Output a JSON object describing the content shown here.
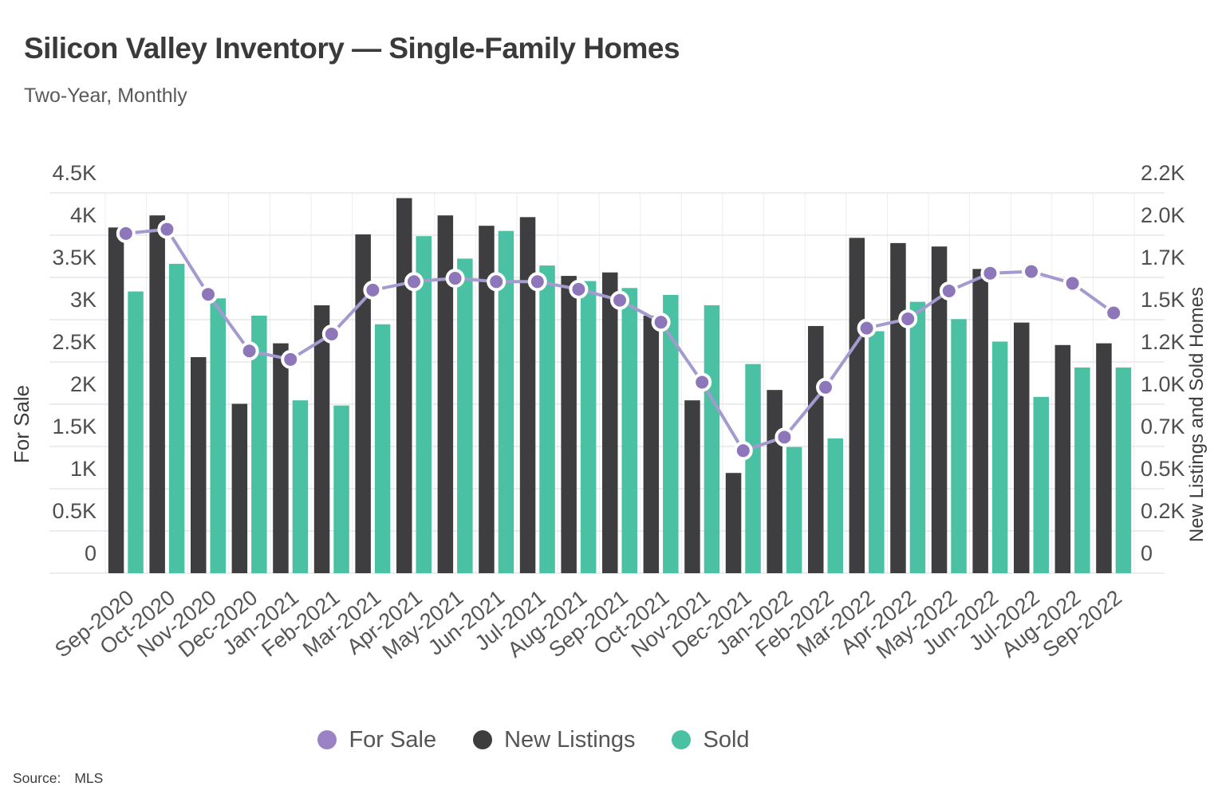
{
  "header": {
    "title": "Silicon Valley Inventory — Single-Family Homes",
    "subtitle": "Two-Year, Monthly"
  },
  "source": {
    "label": "Source:",
    "value": "MLS"
  },
  "legend": [
    {
      "label": "For Sale",
      "color": "#9b82c4"
    },
    {
      "label": "New Listings",
      "color": "#3e3e41"
    },
    {
      "label": "Sold",
      "color": "#49c1a2"
    }
  ],
  "chart_data": {
    "type": "combo-bar-line",
    "title": "Silicon Valley Inventory — Single-Family Homes",
    "subtitle": "Two-Year, Monthly",
    "grid": true,
    "legend_position": "bottom",
    "categories": [
      "Sep-2020",
      "Oct-2020",
      "Nov-2020",
      "Dec-2020",
      "Jan-2021",
      "Feb-2021",
      "Mar-2021",
      "Apr-2021",
      "May-2021",
      "Jun-2021",
      "Jul-2021",
      "Aug-2021",
      "Sep-2021",
      "Oct-2021",
      "Nov-2021",
      "Dec-2021",
      "Jan-2022",
      "Feb-2022",
      "Mar-2022",
      "Apr-2022",
      "May-2022",
      "Jun-2022",
      "Jul-2022",
      "Aug-2022",
      "Sep-2022"
    ],
    "series": [
      {
        "name": "For Sale",
        "type": "line",
        "axis": "left",
        "color": "#8d76b9",
        "line_color": "#a49ad0",
        "values": [
          4020,
          4070,
          3300,
          2630,
          2530,
          2830,
          3350,
          3450,
          3490,
          3450,
          3450,
          3360,
          3230,
          2970,
          2260,
          1450,
          1610,
          2200,
          2900,
          3010,
          3340,
          3550,
          3570,
          3430,
          3080
        ]
      },
      {
        "name": "New Listings",
        "type": "bar",
        "axis": "right",
        "color": "#3e3e41",
        "values": [
          2000,
          2070,
          1250,
          980,
          1330,
          1550,
          1960,
          2170,
          2070,
          2010,
          2060,
          1720,
          1740,
          1490,
          1000,
          580,
          1060,
          1430,
          1940,
          1910,
          1890,
          1760,
          1450,
          1320,
          1330
        ]
      },
      {
        "name": "Sold",
        "type": "bar",
        "axis": "right",
        "color": "#49c1a2",
        "values": [
          1630,
          1790,
          1590,
          1490,
          1000,
          970,
          1440,
          1950,
          1820,
          1980,
          1780,
          1690,
          1650,
          1610,
          1550,
          1210,
          730,
          780,
          1400,
          1570,
          1470,
          1340,
          1020,
          1190,
          1190
        ]
      }
    ],
    "axes": {
      "left": {
        "title": "For Sale",
        "min": 0,
        "max": 4500,
        "tick_labels": [
          "0",
          "0.5K",
          "1K",
          "1.5K",
          "2K",
          "2.5K",
          "3K",
          "3.5K",
          "4K",
          "4.5K"
        ]
      },
      "right": {
        "title": "New Listings and Sold Homes",
        "min": 0,
        "max": 2200,
        "tick_labels": [
          "0",
          "0.2K",
          "0.5K",
          "0.7K",
          "1.0K",
          "1.2K",
          "1.5K",
          "1.7K",
          "2.0K",
          "2.2K"
        ]
      }
    }
  }
}
